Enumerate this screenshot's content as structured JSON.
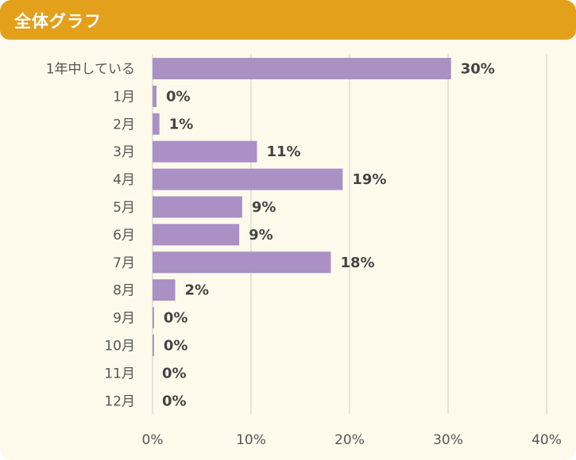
{
  "header": {
    "title": "全体グラフ"
  },
  "colors": {
    "header_bg": "#e3a01a",
    "card_bg": "#fdfaeb",
    "bar": "#aa90c4",
    "grid": "#dcdcd2"
  },
  "chart_data": {
    "type": "bar",
    "orientation": "horizontal",
    "categories": [
      "1年中している",
      "1月",
      "2月",
      "3月",
      "4月",
      "5月",
      "6月",
      "7月",
      "8月",
      "9月",
      "10月",
      "11月",
      "12月"
    ],
    "values": [
      30.3,
      0.4,
      0.7,
      10.6,
      19.3,
      9.1,
      8.8,
      18.1,
      2.3,
      0.15,
      0.15,
      0,
      0
    ],
    "value_labels": [
      "30%",
      "0%",
      "1%",
      "11%",
      "19%",
      "9%",
      "9%",
      "18%",
      "2%",
      "0%",
      "0%",
      "0%",
      "0%"
    ],
    "xticks": [
      "0%",
      "10%",
      "20%",
      "30%",
      "40%"
    ],
    "xlim": [
      0,
      40
    ],
    "grid": true
  }
}
